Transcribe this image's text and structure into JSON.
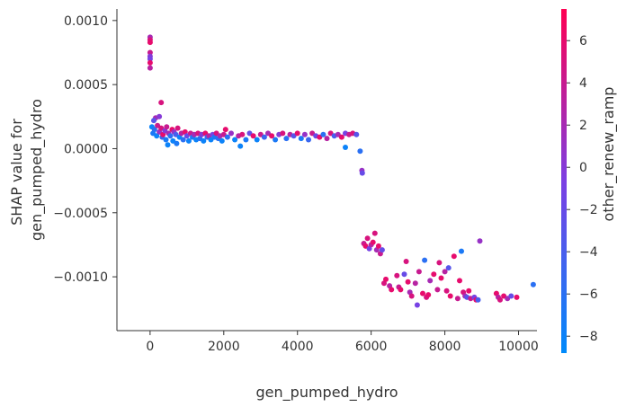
{
  "chart_data": {
    "type": "scatter",
    "title": "",
    "xlabel": "gen_pumped_hydro",
    "ylabel_lines": [
      "SHAP value for",
      "gen_pumped_hydro"
    ],
    "xlim": [
      -900,
      10500
    ],
    "ylim": [
      -0.00142,
      0.00109
    ],
    "x_ticks": [
      0,
      2000,
      4000,
      6000,
      8000,
      10000
    ],
    "x_tick_labels": [
      "0",
      "2000",
      "4000",
      "6000",
      "8000",
      "10000"
    ],
    "y_ticks": [
      0.001,
      0.0005,
      0.0,
      -0.0005,
      -0.001
    ],
    "y_tick_labels": [
      "0.0010",
      "0.0005",
      "0.0000",
      "−0.0005",
      "−0.0010"
    ],
    "grid": false,
    "colorbar": {
      "label": "other_renew_ramp",
      "range": [
        -8.8,
        7.5
      ],
      "ticks": [
        6,
        4,
        2,
        0,
        -2,
        -4,
        -6,
        -8
      ],
      "tick_labels": [
        "6",
        "4",
        "2",
        "0",
        "−2",
        "−4",
        "−6",
        "−8"
      ],
      "colors": [
        "#008afb",
        "#7c3fe3",
        "#ff0052"
      ]
    },
    "points": [
      [
        0,
        0.00087,
        2
      ],
      [
        0,
        0.00085,
        5
      ],
      [
        0,
        0.00083,
        6
      ],
      [
        0,
        0.00075,
        4
      ],
      [
        0,
        0.00072,
        0
      ],
      [
        0,
        0.0007,
        -1
      ],
      [
        0,
        0.00067,
        6
      ],
      [
        0,
        0.00063,
        3
      ],
      [
        300,
        0.00036,
        5
      ],
      [
        150,
        0.00024,
        2
      ],
      [
        250,
        0.00025,
        0
      ],
      [
        100,
        0.00022,
        -3
      ],
      [
        50,
        0.00017,
        -8
      ],
      [
        80,
        0.00012,
        -7
      ],
      [
        120,
        0.00015,
        -6
      ],
      [
        180,
        0.0001,
        -8
      ],
      [
        200,
        0.00018,
        4
      ],
      [
        250,
        0.00013,
        1
      ],
      [
        300,
        0.00016,
        5
      ],
      [
        330,
        9e-05,
        -5
      ],
      [
        350,
        0.00011,
        6
      ],
      [
        400,
        0.00014,
        0
      ],
      [
        430,
        7e-05,
        -7
      ],
      [
        450,
        0.00017,
        4
      ],
      [
        480,
        3e-05,
        -8
      ],
      [
        500,
        0.00012,
        2
      ],
      [
        550,
        0.0001,
        -6
      ],
      [
        600,
        0.00015,
        6
      ],
      [
        620,
        6e-05,
        -8
      ],
      [
        650,
        0.00013,
        1
      ],
      [
        700,
        0.00011,
        -4
      ],
      [
        720,
        4e-05,
        -7
      ],
      [
        750,
        0.00016,
        5
      ],
      [
        800,
        9e-05,
        -8
      ],
      [
        850,
        0.00012,
        3
      ],
      [
        900,
        7e-05,
        -6
      ],
      [
        950,
        0.00013,
        6
      ],
      [
        1000,
        0.0001,
        -2
      ],
      [
        1050,
        6e-05,
        -8
      ],
      [
        1100,
        0.00012,
        4
      ],
      [
        1150,
        9e-05,
        -7
      ],
      [
        1200,
        0.00011,
        2
      ],
      [
        1250,
        7e-05,
        -8
      ],
      [
        1300,
        0.00012,
        5
      ],
      [
        1350,
        8e-05,
        -6
      ],
      [
        1400,
        0.00011,
        0
      ],
      [
        1450,
        6e-05,
        -8
      ],
      [
        1500,
        0.00012,
        6
      ],
      [
        1550,
        9e-05,
        -5
      ],
      [
        1600,
        0.0001,
        3
      ],
      [
        1650,
        7e-05,
        -8
      ],
      [
        1700,
        0.00011,
        -1
      ],
      [
        1750,
        9e-05,
        -7
      ],
      [
        1800,
        0.00012,
        5
      ],
      [
        1850,
        8e-05,
        -6
      ],
      [
        1900,
        0.0001,
        2
      ],
      [
        1950,
        6e-05,
        -8
      ],
      [
        2000,
        0.00011,
        4
      ],
      [
        2050,
        0.00015,
        6
      ],
      [
        2100,
        9e-05,
        -6
      ],
      [
        2200,
        0.00012,
        1
      ],
      [
        2300,
        7e-05,
        -8
      ],
      [
        2400,
        0.0001,
        3
      ],
      [
        2450,
        2e-05,
        -8
      ],
      [
        2500,
        0.00011,
        5
      ],
      [
        2600,
        7e-05,
        -7
      ],
      [
        2700,
        0.00012,
        -2
      ],
      [
        2800,
        0.0001,
        6
      ],
      [
        2900,
        7e-05,
        -8
      ],
      [
        3000,
        0.00011,
        4
      ],
      [
        3100,
        9e-05,
        -5
      ],
      [
        3200,
        0.00012,
        2
      ],
      [
        3300,
        0.0001,
        6
      ],
      [
        3400,
        7e-05,
        -7
      ],
      [
        3500,
        0.00011,
        0
      ],
      [
        3600,
        0.00012,
        5
      ],
      [
        3700,
        8e-05,
        -6
      ],
      [
        3800,
        0.00011,
        3
      ],
      [
        3900,
        0.0001,
        -3
      ],
      [
        4000,
        0.00012,
        6
      ],
      [
        4100,
        8e-05,
        -7
      ],
      [
        4200,
        0.00011,
        1
      ],
      [
        4300,
        7e-05,
        -5
      ],
      [
        4400,
        0.00012,
        4
      ],
      [
        4500,
        0.0001,
        -2
      ],
      [
        4600,
        9e-05,
        6
      ],
      [
        4700,
        0.00011,
        -6
      ],
      [
        4800,
        8e-05,
        3
      ],
      [
        4900,
        0.00012,
        5
      ],
      [
        5000,
        0.0001,
        -4
      ],
      [
        5100,
        0.00011,
        2
      ],
      [
        5200,
        9e-05,
        6
      ],
      [
        5300,
        0.00012,
        -1
      ],
      [
        5400,
        0.00011,
        4
      ],
      [
        5500,
        0.00012,
        5
      ],
      [
        5600,
        0.00011,
        -3
      ],
      [
        5300,
        1e-05,
        -8
      ],
      [
        5700,
        -2e-05,
        -6
      ],
      [
        5750,
        -0.00017,
        1
      ],
      [
        5760,
        -0.00019,
        -2
      ],
      [
        5800,
        -0.00074,
        4
      ],
      [
        5850,
        -0.00076,
        6
      ],
      [
        5900,
        -0.0007,
        5
      ],
      [
        5950,
        -0.00078,
        -1
      ],
      [
        6000,
        -0.00075,
        3
      ],
      [
        6050,
        -0.00073,
        6
      ],
      [
        6100,
        -0.00066,
        5
      ],
      [
        6150,
        -0.00079,
        2
      ],
      [
        6200,
        -0.00076,
        6
      ],
      [
        6250,
        -0.00082,
        4
      ],
      [
        6300,
        -0.00079,
        -2
      ],
      [
        6350,
        -0.00105,
        5
      ],
      [
        6400,
        -0.00102,
        6
      ],
      [
        6500,
        -0.00107,
        3
      ],
      [
        6550,
        -0.0011,
        6
      ],
      [
        6700,
        -0.00099,
        5
      ],
      [
        6750,
        -0.00108,
        4
      ],
      [
        6800,
        -0.0011,
        6
      ],
      [
        6900,
        -0.00098,
        -2
      ],
      [
        6950,
        -0.00088,
        5
      ],
      [
        7000,
        -0.00104,
        6
      ],
      [
        7050,
        -0.00112,
        2
      ],
      [
        7100,
        -0.00115,
        5
      ],
      [
        7200,
        -0.00105,
        3
      ],
      [
        7250,
        -0.00122,
        -1
      ],
      [
        7300,
        -0.00096,
        4
      ],
      [
        7400,
        -0.00113,
        6
      ],
      [
        7450,
        -0.00087,
        -6
      ],
      [
        7500,
        -0.00116,
        5
      ],
      [
        7550,
        -0.00114,
        6
      ],
      [
        7600,
        -0.00103,
        2
      ],
      [
        7700,
        -0.00098,
        6
      ],
      [
        7800,
        -0.0011,
        4
      ],
      [
        7850,
        -0.00089,
        5
      ],
      [
        7900,
        -0.00101,
        6
      ],
      [
        8000,
        -0.00096,
        3
      ],
      [
        8050,
        -0.00111,
        5
      ],
      [
        8100,
        -0.00093,
        -3
      ],
      [
        8150,
        -0.00115,
        6
      ],
      [
        8250,
        -0.00084,
        6
      ],
      [
        8350,
        -0.00117,
        4
      ],
      [
        8400,
        -0.00103,
        6
      ],
      [
        8450,
        -0.0008,
        -7
      ],
      [
        8500,
        -0.00112,
        5
      ],
      [
        8550,
        -0.00115,
        2
      ],
      [
        8600,
        -0.00116,
        -3
      ],
      [
        8650,
        -0.00111,
        6
      ],
      [
        8700,
        -0.00117,
        4
      ],
      [
        8800,
        -0.00116,
        -1
      ],
      [
        8850,
        -0.00118,
        6
      ],
      [
        8900,
        -0.00118,
        -4
      ],
      [
        8950,
        -0.00072,
        1
      ],
      [
        9400,
        -0.00113,
        6
      ],
      [
        9450,
        -0.00116,
        3
      ],
      [
        9500,
        -0.00118,
        5
      ],
      [
        9600,
        -0.00115,
        6
      ],
      [
        9700,
        -0.00117,
        2
      ],
      [
        9800,
        -0.00115,
        -2
      ],
      [
        9950,
        -0.00116,
        6
      ],
      [
        10400,
        -0.00106,
        -6
      ]
    ]
  }
}
